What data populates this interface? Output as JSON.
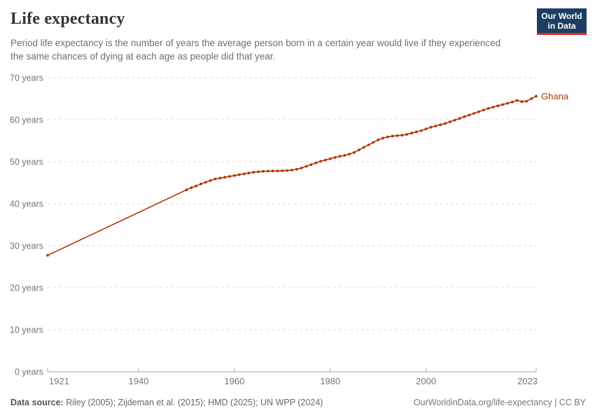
{
  "header": {
    "title": "Life expectancy",
    "subtitle": "Period life expectancy is the number of years the average person born in a certain year would live if they experienced the same chances of dying at each age as people did that year.",
    "logo": {
      "line1": "Our World",
      "line2": "in Data",
      "bg_color": "#1d3d63",
      "stripe_color": "#dc3018"
    }
  },
  "chart_data": {
    "type": "line",
    "title": "Life expectancy",
    "entity": "Ghana",
    "unit": "years",
    "line_color": "#B13507",
    "grid": "dashed-horizontal",
    "legend_position": "end-of-line-label",
    "xlim": [
      1921,
      2023
    ],
    "ylim": [
      0,
      70
    ],
    "yticks": [
      0,
      10,
      20,
      30,
      40,
      50,
      60,
      70
    ],
    "ytick_suffix": " years",
    "xticks": [
      1921,
      1940,
      1960,
      1980,
      2000,
      2023
    ],
    "series": [
      {
        "name": "Ghana",
        "points": [
          [
            1921,
            27.7
          ],
          [
            1950,
            43.3
          ],
          [
            1951,
            43.8
          ],
          [
            1952,
            44.2
          ],
          [
            1953,
            44.7
          ],
          [
            1954,
            45.1
          ],
          [
            1955,
            45.5
          ],
          [
            1956,
            45.9
          ],
          [
            1957,
            46.1
          ],
          [
            1958,
            46.3
          ],
          [
            1959,
            46.5
          ],
          [
            1960,
            46.7
          ],
          [
            1961,
            46.9
          ],
          [
            1962,
            47.1
          ],
          [
            1963,
            47.3
          ],
          [
            1964,
            47.5
          ],
          [
            1965,
            47.6
          ],
          [
            1966,
            47.7
          ],
          [
            1967,
            47.75
          ],
          [
            1968,
            47.8
          ],
          [
            1969,
            47.8
          ],
          [
            1970,
            47.85
          ],
          [
            1971,
            47.9
          ],
          [
            1972,
            48.0
          ],
          [
            1973,
            48.2
          ],
          [
            1974,
            48.5
          ],
          [
            1975,
            48.9
          ],
          [
            1976,
            49.3
          ],
          [
            1977,
            49.7
          ],
          [
            1978,
            50.1
          ],
          [
            1979,
            50.4
          ],
          [
            1980,
            50.7
          ],
          [
            1981,
            51.0
          ],
          [
            1982,
            51.3
          ],
          [
            1983,
            51.5
          ],
          [
            1984,
            51.8
          ],
          [
            1985,
            52.2
          ],
          [
            1986,
            52.8
          ],
          [
            1987,
            53.4
          ],
          [
            1988,
            54.0
          ],
          [
            1989,
            54.6
          ],
          [
            1990,
            55.2
          ],
          [
            1991,
            55.6
          ],
          [
            1992,
            55.9
          ],
          [
            1993,
            56.1
          ],
          [
            1994,
            56.2
          ],
          [
            1995,
            56.3
          ],
          [
            1996,
            56.5
          ],
          [
            1997,
            56.8
          ],
          [
            1998,
            57.1
          ],
          [
            1999,
            57.4
          ],
          [
            2000,
            57.8
          ],
          [
            2001,
            58.2
          ],
          [
            2002,
            58.5
          ],
          [
            2003,
            58.8
          ],
          [
            2004,
            59.1
          ],
          [
            2005,
            59.5
          ],
          [
            2006,
            59.9
          ],
          [
            2007,
            60.3
          ],
          [
            2008,
            60.7
          ],
          [
            2009,
            61.1
          ],
          [
            2010,
            61.5
          ],
          [
            2011,
            61.9
          ],
          [
            2012,
            62.3
          ],
          [
            2013,
            62.7
          ],
          [
            2014,
            63.0
          ],
          [
            2015,
            63.3
          ],
          [
            2016,
            63.6
          ],
          [
            2017,
            63.9
          ],
          [
            2018,
            64.2
          ],
          [
            2019,
            64.6
          ],
          [
            2020,
            64.3
          ],
          [
            2021,
            64.4
          ],
          [
            2022,
            65.0
          ],
          [
            2023,
            65.6
          ]
        ]
      }
    ]
  },
  "footer": {
    "datasource_label": "Data source:",
    "datasource_text": " Riley (2005); Zijdeman et al. (2015); HMD (2025); UN WPP (2024)",
    "link_text": "OurWorldinData.org/life-expectancy | CC BY"
  }
}
